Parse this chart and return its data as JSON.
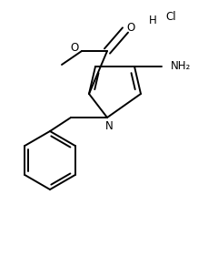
{
  "bg_color": "#ffffff",
  "line_color": "#000000",
  "text_color": "#000000",
  "figsize": [
    2.4,
    2.81
  ],
  "dpi": 100,
  "bond_lw": 1.4,
  "font_size": 8.5,
  "xlim": [
    0,
    240
  ],
  "ylim": [
    0,
    281
  ]
}
